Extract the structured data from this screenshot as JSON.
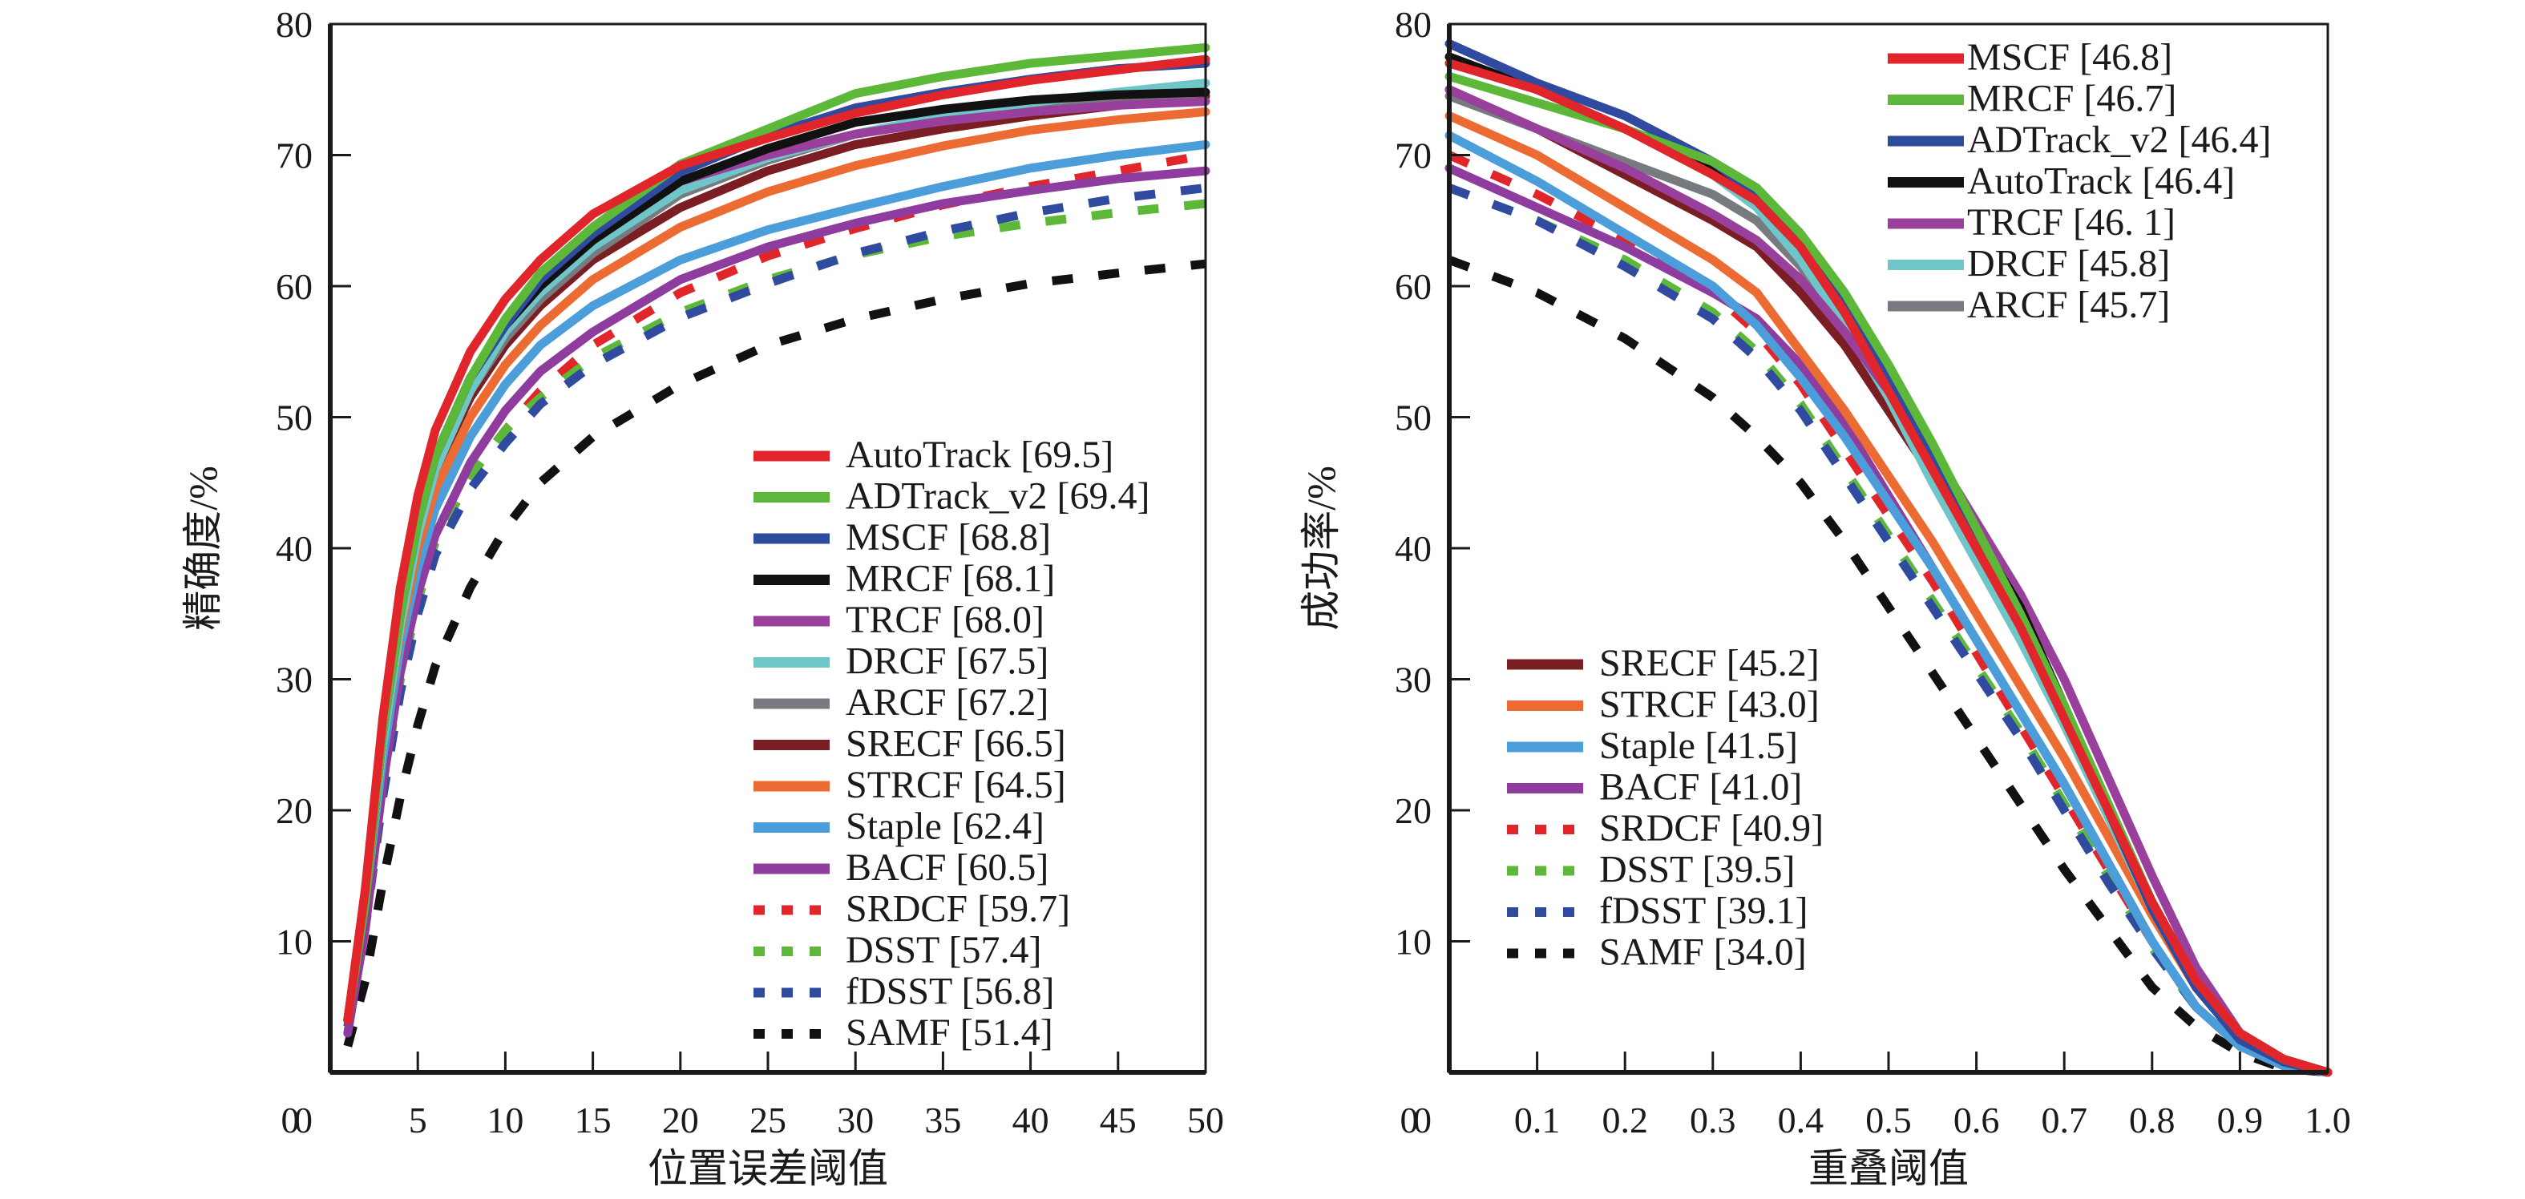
{
  "chart_data": [
    {
      "type": "line",
      "id": "precision",
      "title": "",
      "xlabel": "位置误差阈值",
      "ylabel": "精确度/%",
      "xlim": [
        0,
        50
      ],
      "ylim": [
        0,
        80
      ],
      "xticks": [
        0,
        5,
        10,
        15,
        20,
        25,
        30,
        35,
        40,
        45,
        50
      ],
      "yticks": [
        0,
        10,
        20,
        30,
        40,
        50,
        60,
        70,
        80
      ],
      "xtick_labels": [
        "0",
        "5",
        "10",
        "15",
        "20",
        "25",
        "30",
        "35",
        "40",
        "45",
        "50"
      ],
      "ytick_labels": [
        "0",
        "10",
        "20",
        "30",
        "40",
        "50",
        "60",
        "70",
        "80"
      ],
      "grid": false,
      "legend_position": "bottom-right",
      "x": [
        1,
        2,
        3,
        4,
        5,
        6,
        8,
        10,
        12,
        15,
        20,
        25,
        30,
        35,
        40,
        45,
        50
      ],
      "series": [
        {
          "name": "AutoTrack",
          "score": "69.5",
          "legend": "AutoTrack [69.5]",
          "color": "#e0262b",
          "dash": false,
          "values": [
            4,
            14,
            27,
            37,
            44,
            49,
            55,
            59,
            62,
            65.5,
            69.2,
            71.3,
            73.2,
            74.6,
            75.7,
            76.5,
            77.3
          ]
        },
        {
          "name": "ADTrack_v2",
          "score": "69.4",
          "legend": "ADTrack_v2 [69.4]",
          "color": "#5db83a",
          "dash": false,
          "values": [
            4,
            13,
            26,
            35,
            42,
            47,
            53,
            57.5,
            61,
            64.5,
            69.3,
            72.0,
            74.7,
            76.0,
            77.0,
            77.6,
            78.2
          ]
        },
        {
          "name": "MSCF",
          "score": "68.8",
          "legend": "MSCF [68.8]",
          "color": "#2f4a9e",
          "dash": false,
          "values": [
            4,
            13,
            26,
            35,
            42,
            47,
            53,
            57,
            60.5,
            64,
            68.7,
            71.5,
            73.6,
            74.8,
            75.8,
            76.6,
            77.0
          ]
        },
        {
          "name": "MRCF",
          "score": "68.1",
          "legend": "MRCF [68.1]",
          "color": "#111111",
          "dash": false,
          "values": [
            4,
            13,
            26,
            35,
            42,
            47,
            53,
            57,
            60,
            63.5,
            68.0,
            70.5,
            72.5,
            73.5,
            74.2,
            74.6,
            74.8
          ]
        },
        {
          "name": "TRCF",
          "score": "68.0",
          "legend": "TRCF [68.0]",
          "color": "#993f9c",
          "dash": false,
          "values": [
            4,
            13,
            26,
            35,
            42,
            47,
            53,
            57,
            60,
            63.5,
            68.0,
            70.0,
            71.6,
            72.6,
            73.3,
            73.8,
            74.1
          ]
        },
        {
          "name": "DRCF",
          "score": "67.5",
          "legend": "DRCF [67.5]",
          "color": "#6fc6c8",
          "dash": false,
          "values": [
            4,
            13,
            25,
            34,
            41,
            46,
            52,
            56.5,
            59.5,
            63,
            67.3,
            69.8,
            71.6,
            73.0,
            74.0,
            74.8,
            75.5
          ]
        },
        {
          "name": "ARCF",
          "score": "67.2",
          "legend": "ARCF [67.2]",
          "color": "#777b80",
          "dash": false,
          "values": [
            4,
            13,
            25,
            34,
            41,
            46,
            52,
            56,
            59,
            62.5,
            67.0,
            69.6,
            71.6,
            72.8,
            73.7,
            74.3,
            74.8
          ]
        },
        {
          "name": "SRECF",
          "score": "66.5",
          "legend": "SRECF [66.5]",
          "color": "#7a1e24",
          "dash": false,
          "values": [
            4,
            13,
            25,
            34,
            41,
            46,
            51.5,
            55.5,
            58.5,
            62,
            66.0,
            68.8,
            70.8,
            72.0,
            73.0,
            73.8,
            74.5
          ]
        },
        {
          "name": "STRCF",
          "score": "64.5",
          "legend": "STRCF [64.5]",
          "color": "#ec6b33",
          "dash": false,
          "values": [
            4,
            13,
            25,
            33.5,
            40,
            44.5,
            50,
            54,
            57,
            60.5,
            64.5,
            67.2,
            69.2,
            70.7,
            71.9,
            72.7,
            73.3
          ]
        },
        {
          "name": "Staple",
          "score": "62.4",
          "legend": "Staple [62.4]",
          "color": "#4b9ed9",
          "dash": false,
          "values": [
            4,
            13,
            24,
            32.5,
            38.5,
            43,
            48.5,
            52.5,
            55.5,
            58.5,
            62.0,
            64.3,
            66.0,
            67.6,
            69.0,
            70.0,
            70.8
          ]
        },
        {
          "name": "BACF",
          "score": "60.5",
          "legend": "BACF [60.5]",
          "color": "#8e3c9e",
          "dash": false,
          "values": [
            3,
            11,
            22,
            30.5,
            36.5,
            41,
            46.5,
            50.5,
            53.5,
            56.5,
            60.5,
            63.0,
            64.8,
            66.3,
            67.3,
            68.2,
            68.8
          ]
        },
        {
          "name": "SRDCF",
          "score": "59.7",
          "legend": "SRDCF [59.7]",
          "color": "#e0262b",
          "dash": true,
          "values": [
            4,
            12,
            22,
            30,
            36,
            40.5,
            45.5,
            49,
            52,
            55.5,
            59.5,
            62.3,
            64.4,
            66.2,
            67.6,
            68.8,
            70.0
          ]
        },
        {
          "name": "DSST",
          "score": "57.4",
          "legend": "DSST [57.4]",
          "color": "#5db83a",
          "dash": true,
          "values": [
            4,
            12,
            22,
            30,
            36,
            40.5,
            45.5,
            49,
            51.5,
            54.5,
            58.0,
            60.5,
            62.4,
            63.8,
            64.8,
            65.6,
            66.3
          ]
        },
        {
          "name": "fDSST",
          "score": "56.8",
          "legend": "fDSST [56.8]",
          "color": "#2f4a9e",
          "dash": true,
          "values": [
            3.5,
            11,
            21,
            29,
            35,
            39.5,
            44.5,
            48,
            51,
            54,
            57.6,
            60.2,
            62.5,
            64.2,
            65.6,
            66.7,
            67.5
          ]
        },
        {
          "name": "SAMF",
          "score": "51.4",
          "legend": "SAMF [51.4]",
          "color": "#111111",
          "dash": true,
          "values": [
            2,
            7,
            14.5,
            21,
            26.5,
            31,
            37,
            41.5,
            45,
            48.5,
            52.5,
            55.5,
            57.5,
            59.0,
            60.2,
            61.0,
            61.7
          ]
        }
      ]
    },
    {
      "type": "line",
      "id": "success",
      "title": "",
      "xlabel": "重叠阈值",
      "ylabel": "成功率/%",
      "xlim": [
        0,
        1.0
      ],
      "ylim": [
        0,
        80
      ],
      "xticks": [
        0,
        0.1,
        0.2,
        0.3,
        0.4,
        0.5,
        0.6,
        0.7,
        0.8,
        0.9,
        1.0
      ],
      "yticks": [
        0,
        10,
        20,
        30,
        40,
        50,
        60,
        70,
        80
      ],
      "xtick_labels": [
        "0",
        "0.1",
        "0.2",
        "0.3",
        "0.4",
        "0.5",
        "0.6",
        "0.7",
        "0.8",
        "0.9",
        "1.0"
      ],
      "ytick_labels": [
        "0",
        "10",
        "20",
        "30",
        "40",
        "50",
        "60",
        "70",
        "80"
      ],
      "grid": false,
      "legend_position": "top-right and bottom-left (split)",
      "x": [
        0,
        0.1,
        0.2,
        0.3,
        0.35,
        0.4,
        0.45,
        0.5,
        0.55,
        0.6,
        0.65,
        0.7,
        0.75,
        0.8,
        0.85,
        0.9,
        0.95,
        1.0
      ],
      "series": [
        {
          "name": "MSCF",
          "score": "46.8",
          "legend": "MSCF [46.8]",
          "color": "#e0262b",
          "dash": false,
          "legend_group": "top",
          "values": [
            77,
            75,
            72,
            68.5,
            66.5,
            63,
            58,
            52,
            46,
            40,
            34,
            27,
            20,
            13,
            7,
            3,
            1,
            0
          ]
        },
        {
          "name": "MRCF",
          "score": "46.7",
          "legend": "MRCF [46.7]",
          "color": "#5db83a",
          "dash": false,
          "legend_group": "top",
          "values": [
            76,
            74,
            72,
            69.5,
            67.5,
            64,
            59.5,
            54,
            48,
            41.5,
            35,
            28,
            20.5,
            13,
            7,
            3,
            1,
            0
          ]
        },
        {
          "name": "ADTrack_v2",
          "score": "46.4",
          "legend": "ADTrack_v2 [46.4]",
          "color": "#2f4a9e",
          "dash": false,
          "legend_group": "top",
          "values": [
            78.5,
            75.5,
            73,
            69.5,
            67,
            63.5,
            58.5,
            53,
            47,
            41,
            34.5,
            27.5,
            20,
            12.5,
            6.5,
            2.5,
            0.8,
            0
          ]
        },
        {
          "name": "AutoTrack",
          "score": "46.4",
          "legend": "AutoTrack [46.4]",
          "color": "#111111",
          "dash": false,
          "legend_group": "top",
          "values": [
            77.5,
            75,
            72,
            69,
            66.5,
            63,
            58,
            52.5,
            46.5,
            41,
            35.5,
            28,
            20,
            12.5,
            6.5,
            2.5,
            0.8,
            0
          ]
        },
        {
          "name": "TRCF",
          "score": "46. 1",
          "legend": "TRCF [46. 1]",
          "color": "#993f9c",
          "dash": false,
          "legend_group": "top",
          "values": [
            75,
            72,
            69,
            65.5,
            63.5,
            60.5,
            56.5,
            52,
            47.5,
            42,
            36.5,
            30,
            22.5,
            15,
            8,
            3,
            1,
            0
          ]
        },
        {
          "name": "DRCF",
          "score": "45.8",
          "legend": "DRCF [45.8]",
          "color": "#6fc6c8",
          "dash": false,
          "legend_group": "top",
          "values": [
            77,
            75,
            72,
            68.5,
            66,
            62,
            57,
            51.5,
            45,
            39,
            33,
            26.5,
            19.5,
            12.5,
            6.5,
            2.5,
            0.8,
            0
          ]
        },
        {
          "name": "ARCF",
          "score": "45.7",
          "legend": "ARCF [45.7]",
          "color": "#777b80",
          "dash": false,
          "legend_group": "top",
          "values": [
            74.5,
            72,
            69.5,
            67,
            65,
            61.5,
            57,
            52,
            46,
            40,
            34,
            27.5,
            20,
            12.5,
            6.5,
            2.5,
            0.8,
            0
          ]
        },
        {
          "name": "SRECF",
          "score": "45.2",
          "legend": "SRECF [45.2]",
          "color": "#7a1e24",
          "dash": false,
          "legend_group": "bottom",
          "values": [
            75,
            72,
            68.5,
            65,
            63,
            59.5,
            55.5,
            50.5,
            45.5,
            40,
            34,
            27,
            20,
            13,
            7,
            3,
            1,
            0
          ]
        },
        {
          "name": "STRCF",
          "score": "43.0",
          "legend": "STRCF [43.0]",
          "color": "#ec6b33",
          "dash": false,
          "legend_group": "bottom",
          "values": [
            73,
            70,
            66,
            62,
            59.5,
            55,
            50.5,
            45.5,
            40.5,
            35,
            29.5,
            24,
            18,
            12,
            6.5,
            2.5,
            0.8,
            0
          ]
        },
        {
          "name": "Staple",
          "score": "41.5",
          "legend": "Staple [41.5]",
          "color": "#4b9ed9",
          "dash": false,
          "legend_group": "bottom",
          "values": [
            71.5,
            68,
            64,
            60,
            57,
            53,
            48.5,
            43.5,
            38.5,
            33,
            27.5,
            22,
            16,
            10,
            5,
            2,
            0.5,
            0
          ]
        },
        {
          "name": "BACF",
          "score": "41.0",
          "legend": "BACF [41.0]",
          "color": "#8e3c9e",
          "dash": false,
          "legend_group": "bottom",
          "values": [
            69,
            66,
            63,
            59.5,
            57.5,
            54,
            49.5,
            44,
            38.5,
            33,
            27.5,
            22,
            16,
            10,
            5,
            2,
            0.5,
            0
          ]
        },
        {
          "name": "SRDCF",
          "score": "40.9",
          "legend": "SRDCF [40.9]",
          "color": "#e0262b",
          "dash": true,
          "legend_group": "bottom",
          "values": [
            70,
            67,
            63.5,
            59.5,
            56.5,
            52.5,
            47.5,
            42.5,
            37.5,
            32,
            26.5,
            21,
            15.5,
            10,
            5,
            2,
            0.5,
            0
          ]
        },
        {
          "name": "DSST",
          "score": "39.5",
          "legend": "DSST [39.5]",
          "color": "#5db83a",
          "dash": true,
          "legend_group": "bottom",
          "values": [
            67.5,
            65,
            62,
            58,
            55,
            51,
            46,
            41,
            36,
            31,
            26,
            20.5,
            15,
            9.5,
            5,
            2,
            0.5,
            0
          ]
        },
        {
          "name": "fDSST",
          "score": "39.1",
          "legend": "fDSST [39.1]",
          "color": "#2f4a9e",
          "dash": true,
          "legend_group": "bottom",
          "values": [
            67.5,
            65,
            61.5,
            57.5,
            54.5,
            50.5,
            45.5,
            40.5,
            35.5,
            30.5,
            25.5,
            20,
            14.5,
            9.5,
            5,
            2,
            0.5,
            0
          ]
        },
        {
          "name": "SAMF",
          "score": "34.0",
          "legend": "SAMF [34.0]",
          "color": "#111111",
          "dash": true,
          "legend_group": "bottom",
          "values": [
            62,
            59.5,
            56,
            51.5,
            48.5,
            45,
            40.5,
            35.5,
            30.5,
            25.5,
            20.5,
            15.5,
            11,
            6.5,
            3.5,
            1.5,
            0.3,
            0
          ]
        }
      ]
    }
  ]
}
